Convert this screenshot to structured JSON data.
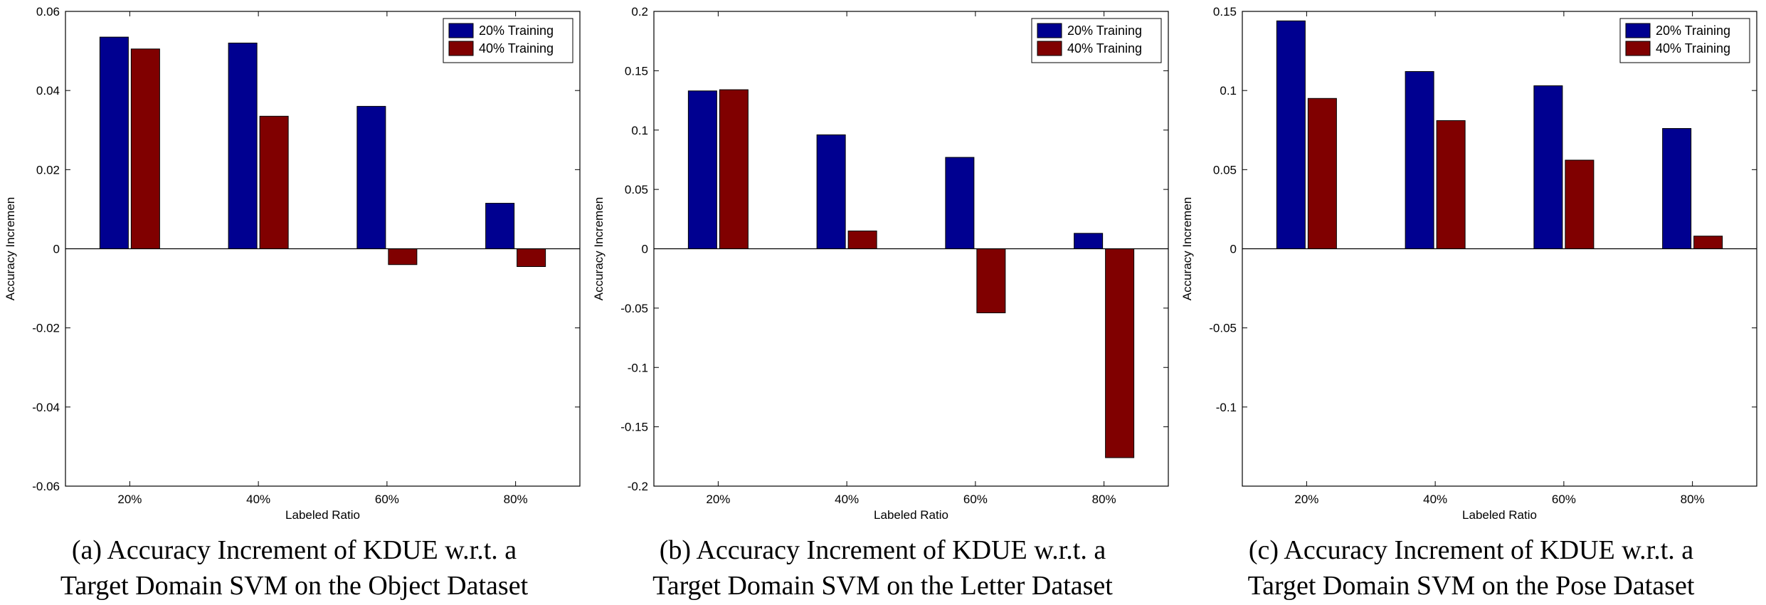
{
  "chart_data": [
    {
      "type": "bar",
      "categories": [
        "20%",
        "40%",
        "60%",
        "80%"
      ],
      "series": [
        {
          "name": "20% Training",
          "values": [
            0.0535,
            0.052,
            0.036,
            0.0115
          ]
        },
        {
          "name": "40% Training",
          "values": [
            0.0505,
            0.0335,
            -0.004,
            -0.0045
          ]
        }
      ],
      "xlabel": "Labeled Ratio",
      "ylabel": "Accuracy Incremen",
      "ylim": [
        -0.06,
        0.06
      ],
      "yticks": [
        -0.06,
        -0.04,
        -0.02,
        0,
        0.02,
        0.04,
        0.06
      ],
      "ytick_labels": [
        "-0.06",
        "-0.04",
        "-0.02",
        "0",
        "0.02",
        "0.04",
        "0.06"
      ],
      "legend_position": "top-right",
      "grid": false,
      "colors": [
        "#000090",
        "#800000"
      ],
      "caption": [
        "(a) Accuracy Increment of KDUE w.r.t. a",
        "Target Domain  SVM on the Object Dataset"
      ]
    },
    {
      "type": "bar",
      "categories": [
        "20%",
        "40%",
        "60%",
        "80%"
      ],
      "series": [
        {
          "name": "20% Training",
          "values": [
            0.133,
            0.096,
            0.077,
            0.013
          ]
        },
        {
          "name": "40% Training",
          "values": [
            0.134,
            0.015,
            -0.054,
            -0.176
          ]
        }
      ],
      "xlabel": "Labeled Ratio",
      "ylabel": "Accuracy Incremen",
      "ylim": [
        -0.2,
        0.2
      ],
      "yticks": [
        -0.2,
        -0.15,
        -0.1,
        -0.05,
        0,
        0.05,
        0.1,
        0.15,
        0.2
      ],
      "ytick_labels": [
        "-0.2",
        "-0.15",
        "-0.1",
        "-0.05",
        "0",
        "0.05",
        "0.1",
        "0.15",
        "0.2"
      ],
      "legend_position": "top-right",
      "grid": false,
      "colors": [
        "#000090",
        "#800000"
      ],
      "caption": [
        "(b) Accuracy Increment of KDUE w.r.t. a",
        "Target Domain  SVM on the Letter Dataset"
      ]
    },
    {
      "type": "bar",
      "categories": [
        "20%",
        "40%",
        "60%",
        "80%"
      ],
      "series": [
        {
          "name": "20% Training",
          "values": [
            0.144,
            0.112,
            0.103,
            0.076
          ]
        },
        {
          "name": "40% Training",
          "values": [
            0.095,
            0.081,
            0.056,
            0.008
          ]
        }
      ],
      "xlabel": "Labeled Ratio",
      "ylabel": "Accuracy Incremen",
      "ylim": [
        -0.15,
        0.15
      ],
      "yticks": [
        -0.1,
        -0.05,
        0,
        0.05,
        0.1,
        0.15
      ],
      "ytick_labels": [
        "-0.1",
        "-0.05",
        "0",
        "0.05",
        "0.1",
        "0.15"
      ],
      "legend_position": "top-right",
      "grid": false,
      "colors": [
        "#000090",
        "#800000"
      ],
      "caption": [
        "(c) Accuracy Increment of KDUE w.r.t. a",
        "Target Domain  SVM on the Pose Dataset"
      ]
    }
  ]
}
